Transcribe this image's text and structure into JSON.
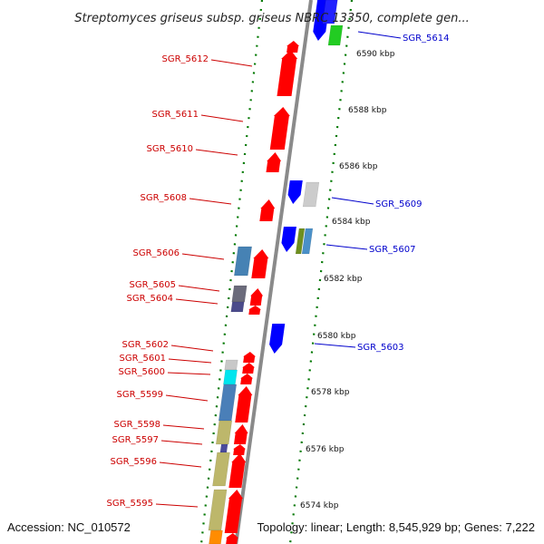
{
  "header": {
    "title": "Streptomyces griseus subsp. griseus NBRC 13350, complete gen..."
  },
  "footer": {
    "accession": "Accession: NC_010572",
    "summary": "Topology: linear; Length: 8,545,929 bp; Genes: 7,222"
  },
  "colors": {
    "plus_strand": "#ff0000",
    "minus_strand": "#0000ff",
    "plus_label": "#cc0000",
    "minus_label": "#0000cc",
    "backbone": "#8a8a8a",
    "tick": "#007700"
  },
  "ticks": [
    {
      "label": "6590 kbp"
    },
    {
      "label": "6588 kbp"
    },
    {
      "label": "6586 kbp"
    },
    {
      "label": "6584 kbp"
    },
    {
      "label": "6582 kbp"
    },
    {
      "label": "6580 kbp"
    },
    {
      "label": "6578 kbp"
    },
    {
      "label": "6576 kbp"
    },
    {
      "label": "6574 kbp"
    }
  ],
  "left_labels": [
    {
      "name": "SGR_5612"
    },
    {
      "name": "SGR_5611"
    },
    {
      "name": "SGR_5610"
    },
    {
      "name": "SGR_5608"
    },
    {
      "name": "SGR_5606"
    },
    {
      "name": "SGR_5605"
    },
    {
      "name": "SGR_5604"
    },
    {
      "name": "SGR_5602"
    },
    {
      "name": "SGR_5601"
    },
    {
      "name": "SGR_5600"
    },
    {
      "name": "SGR_5599"
    },
    {
      "name": "SGR_5598"
    },
    {
      "name": "SGR_5597"
    },
    {
      "name": "SGR_5596"
    },
    {
      "name": "SGR_5595"
    }
  ],
  "right_labels": [
    {
      "name": "SGR_5614"
    },
    {
      "name": "SGR_5609"
    },
    {
      "name": "SGR_5607"
    },
    {
      "name": "SGR_5603"
    }
  ]
}
